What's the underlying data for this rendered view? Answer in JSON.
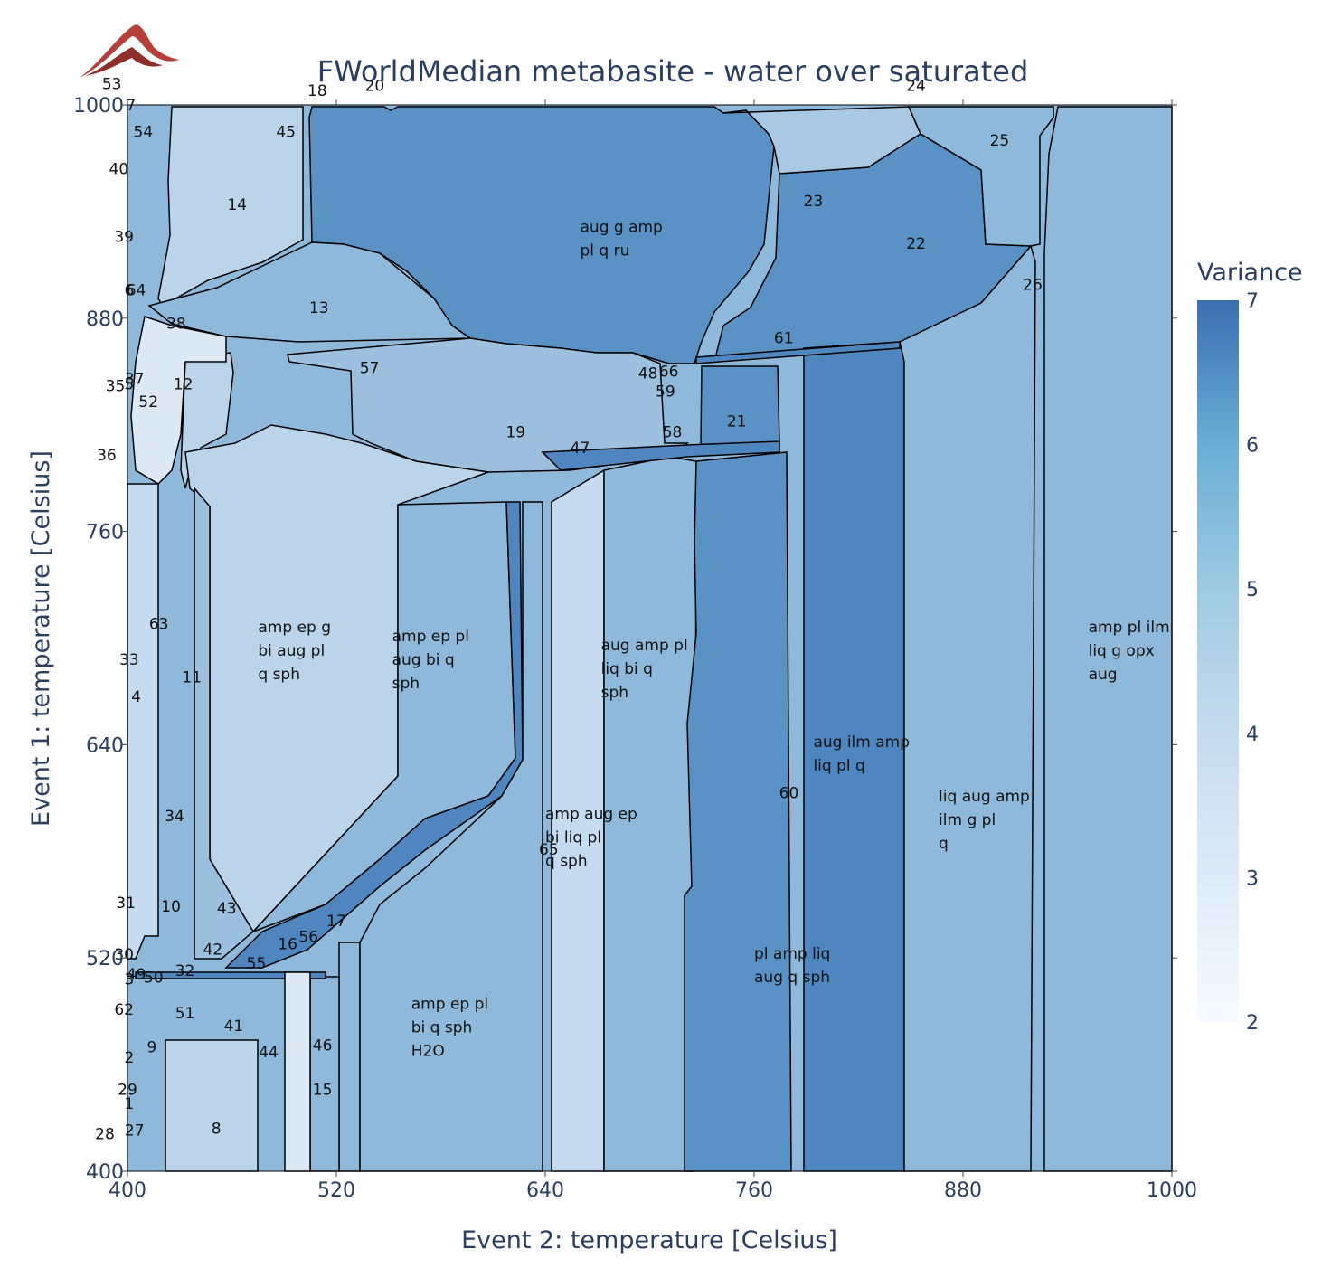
{
  "chart_data": {
    "type": "heatmap",
    "title": "FWorldMedian metabasite - water over saturated",
    "xlabel": "Event 2: temperature [Celsius]",
    "ylabel": "Event 1: temperature [Celsius]",
    "xlim": [
      400,
      1000
    ],
    "ylim": [
      400,
      1000
    ],
    "x_ticks": [
      "400",
      "520",
      "640",
      "760",
      "880",
      "1000"
    ],
    "y_ticks": [
      "400",
      "520",
      "640",
      "760",
      "880",
      "1000"
    ],
    "colorbar": {
      "title": "Variance",
      "range": [
        2,
        7
      ],
      "ticks": [
        "2",
        "3",
        "4",
        "5",
        "6",
        "7"
      ],
      "colorscale": [
        "#f7fbff",
        "#deebf7",
        "#c6dbef",
        "#9ecae1",
        "#6baed6",
        "#4292c6",
        "#2171b5"
      ]
    },
    "fields": [
      {
        "label": "aug g amp\npl q ru",
        "variance": 6,
        "x": 660,
        "y": 922
      },
      {
        "label": "amp ep g\nbi aug pl\nq sph",
        "variance": 4,
        "x": 475,
        "y": 690
      },
      {
        "label": "amp ep pl\naug bi q\nsph",
        "variance": 5,
        "x": 552,
        "y": 685
      },
      {
        "label": "aug amp pl\nliq bi q\nsph",
        "variance": 5,
        "x": 672,
        "y": 680
      },
      {
        "label": "amp aug ep\nbi liq pl\nq sph",
        "variance": 4,
        "x": 640,
        "y": 585
      },
      {
        "label": "aug ilm amp\nliq pl q",
        "variance": 6,
        "x": 794,
        "y": 632
      },
      {
        "label": "liq aug amp\nilm g pl\nq",
        "variance": 5,
        "x": 866,
        "y": 595
      },
      {
        "label": "amp pl ilm\nliq g opx\naug",
        "variance": 5,
        "x": 952,
        "y": 690
      },
      {
        "label": "pl amp liq\naug q sph",
        "variance": 6,
        "x": 760,
        "y": 513
      },
      {
        "label": "amp ep pl\nbi q sph\nH2O",
        "variance": 5,
        "x": 563,
        "y": 478
      }
    ],
    "numbered_labels": [
      {
        "n": "1",
        "x": 401,
        "y": 435
      },
      {
        "n": "2",
        "x": 401,
        "y": 461
      },
      {
        "n": "3",
        "x": 401,
        "y": 505
      },
      {
        "n": "4",
        "x": 405,
        "y": 664
      },
      {
        "n": "5",
        "x": 401,
        "y": 840
      },
      {
        "n": "6",
        "x": 401,
        "y": 893
      },
      {
        "n": "64",
        "x": 405,
        "y": 893
      },
      {
        "n": "7",
        "x": 402,
        "y": 997
      },
      {
        "n": "8",
        "x": 451,
        "y": 421
      },
      {
        "n": "9",
        "x": 414,
        "y": 467
      },
      {
        "n": "10",
        "x": 425,
        "y": 546
      },
      {
        "n": "11",
        "x": 437,
        "y": 675
      },
      {
        "n": "12",
        "x": 432,
        "y": 840
      },
      {
        "n": "13",
        "x": 510,
        "y": 883
      },
      {
        "n": "14",
        "x": 463,
        "y": 941
      },
      {
        "n": "15",
        "x": 512,
        "y": 443
      },
      {
        "n": "16",
        "x": 492,
        "y": 525
      },
      {
        "n": "17",
        "x": 520,
        "y": 538
      },
      {
        "n": "18",
        "x": 509,
        "y": 1005
      },
      {
        "n": "19",
        "x": 623,
        "y": 813
      },
      {
        "n": "20",
        "x": 542,
        "y": 1008
      },
      {
        "n": "21",
        "x": 750,
        "y": 819
      },
      {
        "n": "22",
        "x": 853,
        "y": 919
      },
      {
        "n": "23",
        "x": 794,
        "y": 943
      },
      {
        "n": "24",
        "x": 853,
        "y": 1008
      },
      {
        "n": "25",
        "x": 901,
        "y": 977
      },
      {
        "n": "26",
        "x": 920,
        "y": 896
      },
      {
        "n": "27",
        "x": 404,
        "y": 420
      },
      {
        "n": "28",
        "x": 387,
        "y": 418
      },
      {
        "n": "29",
        "x": 400,
        "y": 443
      },
      {
        "n": "30",
        "x": 398,
        "y": 519
      },
      {
        "n": "31",
        "x": 399,
        "y": 548
      },
      {
        "n": "32",
        "x": 433,
        "y": 510
      },
      {
        "n": "33",
        "x": 401,
        "y": 685
      },
      {
        "n": "34",
        "x": 427,
        "y": 597
      },
      {
        "n": "35",
        "x": 393,
        "y": 839
      },
      {
        "n": "36",
        "x": 388,
        "y": 800
      },
      {
        "n": "37",
        "x": 404,
        "y": 843
      },
      {
        "n": "38",
        "x": 428,
        "y": 874
      },
      {
        "n": "39",
        "x": 398,
        "y": 923
      },
      {
        "n": "40",
        "x": 395,
        "y": 961
      },
      {
        "n": "41",
        "x": 461,
        "y": 479
      },
      {
        "n": "42",
        "x": 449,
        "y": 522
      },
      {
        "n": "43",
        "x": 457,
        "y": 545
      },
      {
        "n": "44",
        "x": 481,
        "y": 464
      },
      {
        "n": "45",
        "x": 491,
        "y": 982
      },
      {
        "n": "46",
        "x": 512,
        "y": 468
      },
      {
        "n": "47",
        "x": 660,
        "y": 804
      },
      {
        "n": "48",
        "x": 699,
        "y": 846
      },
      {
        "n": "49",
        "x": 405,
        "y": 508
      },
      {
        "n": "50",
        "x": 415,
        "y": 506
      },
      {
        "n": "51",
        "x": 433,
        "y": 486
      },
      {
        "n": "52",
        "x": 412,
        "y": 830
      },
      {
        "n": "53",
        "x": 391,
        "y": 1009
      },
      {
        "n": "54",
        "x": 409,
        "y": 982
      },
      {
        "n": "55",
        "x": 474,
        "y": 514
      },
      {
        "n": "56",
        "x": 504,
        "y": 529
      },
      {
        "n": "57",
        "x": 539,
        "y": 849
      },
      {
        "n": "58",
        "x": 713,
        "y": 813
      },
      {
        "n": "59",
        "x": 709,
        "y": 836
      },
      {
        "n": "60",
        "x": 780,
        "y": 610
      },
      {
        "n": "61",
        "x": 777,
        "y": 866
      },
      {
        "n": "62",
        "x": 398,
        "y": 488
      },
      {
        "n": "63",
        "x": 418,
        "y": 705
      },
      {
        "n": "65",
        "x": 642,
        "y": 578
      },
      {
        "n": "66",
        "x": 711,
        "y": 847
      }
    ]
  }
}
